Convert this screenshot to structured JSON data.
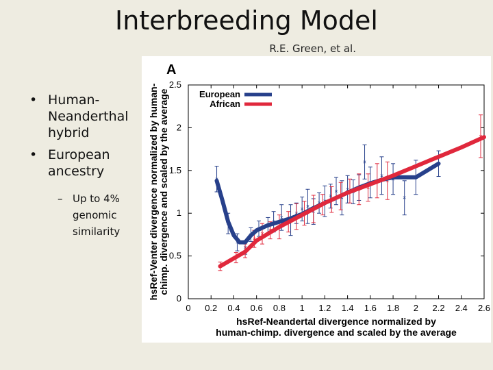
{
  "slide": {
    "title": "Interbreeding Model",
    "subtitle": "R.E. Green, et al.",
    "bullets": [
      {
        "text": "Human-Neanderthal hybrid"
      },
      {
        "text": "European ancestry"
      }
    ],
    "sub_bullets": [
      {
        "text": "Up to 4% genomic similarity"
      }
    ]
  },
  "chart_data": {
    "type": "line",
    "panel_label": "A",
    "title": "",
    "xlabel": "hsRef-Neandertal divergence normalized by human-chimp. divergence and scaled by the average",
    "ylabel": "hsRef-Venter divergence normalized by human-chimp. divergence and scaled by the average",
    "xlim": [
      0,
      2.6
    ],
    "ylim": [
      0,
      2.5
    ],
    "x_ticks": [
      "0",
      "0.2",
      "0.4",
      "0.6",
      "0.8",
      "1",
      "1.2",
      "1.4",
      "1.6",
      "1.8",
      "2",
      "2.2",
      "2.4",
      "2.6"
    ],
    "y_ticks": [
      "0",
      "0.5",
      "1",
      "1.5",
      "2",
      "2.5"
    ],
    "legend_position": "top-left",
    "series": [
      {
        "name": "European",
        "color": "#27408b",
        "curve": [
          [
            0.25,
            1.38
          ],
          [
            0.3,
            1.15
          ],
          [
            0.35,
            0.9
          ],
          [
            0.4,
            0.74
          ],
          [
            0.45,
            0.66
          ],
          [
            0.5,
            0.66
          ],
          [
            0.55,
            0.74
          ],
          [
            0.6,
            0.8
          ],
          [
            0.7,
            0.86
          ],
          [
            0.8,
            0.9
          ],
          [
            0.9,
            0.94
          ],
          [
            1.0,
            0.99
          ],
          [
            1.1,
            1.06
          ],
          [
            1.2,
            1.12
          ],
          [
            1.3,
            1.18
          ],
          [
            1.4,
            1.24
          ],
          [
            1.5,
            1.3
          ],
          [
            1.6,
            1.35
          ],
          [
            1.7,
            1.39
          ],
          [
            1.8,
            1.42
          ],
          [
            1.9,
            1.42
          ],
          [
            2.0,
            1.42
          ],
          [
            2.1,
            1.5
          ],
          [
            2.2,
            1.58
          ]
        ],
        "points": [
          [
            0.25,
            1.4
          ],
          [
            0.35,
            0.88
          ],
          [
            0.43,
            0.66
          ],
          [
            0.5,
            0.6
          ],
          [
            0.55,
            0.75
          ],
          [
            0.62,
            0.82
          ],
          [
            0.7,
            0.85
          ],
          [
            0.75,
            0.9
          ],
          [
            0.82,
            0.95
          ],
          [
            0.9,
            0.92
          ],
          [
            0.95,
            1.0
          ],
          [
            1.0,
            1.05
          ],
          [
            1.05,
            1.08
          ],
          [
            1.1,
            1.02
          ],
          [
            1.15,
            1.12
          ],
          [
            1.2,
            1.14
          ],
          [
            1.25,
            1.2
          ],
          [
            1.3,
            1.26
          ],
          [
            1.35,
            1.18
          ],
          [
            1.4,
            1.28
          ],
          [
            1.45,
            1.25
          ],
          [
            1.5,
            1.3
          ],
          [
            1.55,
            1.6
          ],
          [
            1.6,
            1.36
          ],
          [
            1.7,
            1.44
          ],
          [
            1.8,
            1.4
          ],
          [
            1.9,
            1.18
          ],
          [
            2.0,
            1.42
          ],
          [
            2.2,
            1.58
          ]
        ],
        "errors": [
          0.15,
          0.12,
          0.1,
          0.08,
          0.08,
          0.09,
          0.1,
          0.12,
          0.15,
          0.18,
          0.12,
          0.14,
          0.2,
          0.15,
          0.12,
          0.18,
          0.14,
          0.16,
          0.2,
          0.16,
          0.14,
          0.15,
          0.2,
          0.18,
          0.22,
          0.18,
          0.2,
          0.2,
          0.15
        ]
      },
      {
        "name": "African",
        "color": "#e0283c",
        "curve": [
          [
            0.28,
            0.38
          ],
          [
            0.5,
            0.55
          ],
          [
            0.6,
            0.68
          ],
          [
            0.8,
            0.84
          ],
          [
            1.0,
            0.98
          ],
          [
            1.2,
            1.12
          ],
          [
            1.4,
            1.24
          ],
          [
            1.6,
            1.34
          ],
          [
            1.8,
            1.44
          ],
          [
            2.0,
            1.55
          ],
          [
            2.2,
            1.66
          ],
          [
            2.4,
            1.77
          ],
          [
            2.6,
            1.89
          ]
        ],
        "points": [
          [
            0.28,
            0.38
          ],
          [
            0.42,
            0.48
          ],
          [
            0.5,
            0.56
          ],
          [
            0.58,
            0.7
          ],
          [
            0.65,
            0.76
          ],
          [
            0.72,
            0.8
          ],
          [
            0.8,
            0.84
          ],
          [
            0.88,
            0.9
          ],
          [
            0.95,
            0.96
          ],
          [
            1.02,
            1.0
          ],
          [
            1.1,
            1.05
          ],
          [
            1.18,
            1.1
          ],
          [
            1.26,
            1.16
          ],
          [
            1.34,
            1.2
          ],
          [
            1.42,
            1.26
          ],
          [
            1.5,
            1.28
          ],
          [
            1.58,
            1.3
          ],
          [
            1.66,
            1.38
          ],
          [
            1.75,
            1.38
          ],
          [
            2.57,
            1.9
          ]
        ],
        "errors": [
          0.05,
          0.06,
          0.08,
          0.1,
          0.12,
          0.1,
          0.14,
          0.12,
          0.15,
          0.14,
          0.16,
          0.12,
          0.15,
          0.16,
          0.14,
          0.18,
          0.16,
          0.2,
          0.22,
          0.25
        ]
      }
    ]
  }
}
